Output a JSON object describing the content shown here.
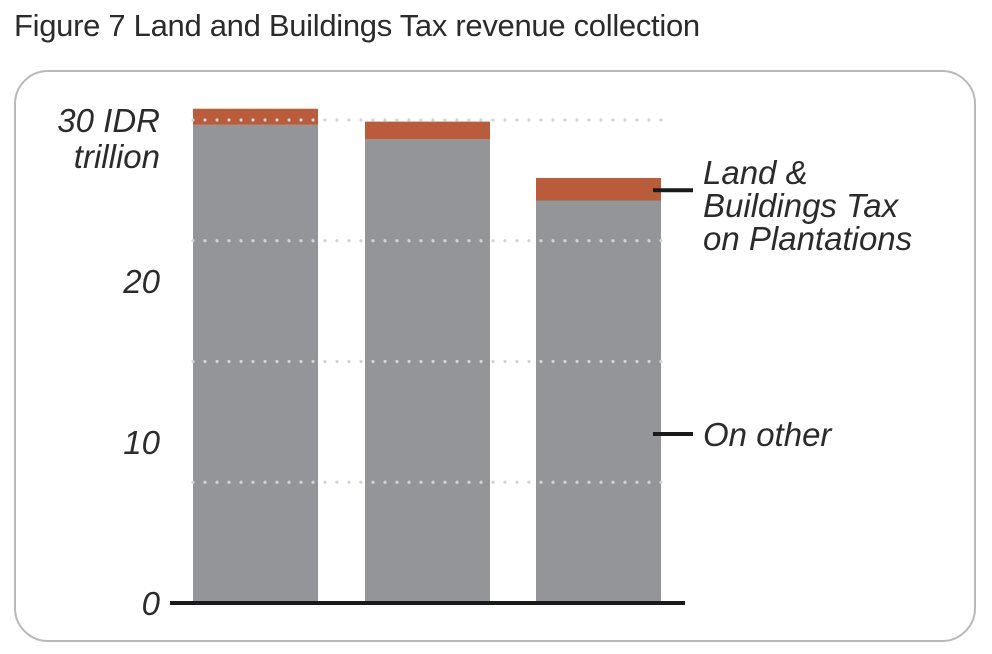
{
  "figure_title": "Figure 7 Land and Buildings Tax revenue collection",
  "chart_data": {
    "type": "bar",
    "stacked": true,
    "categories": [
      "",
      "",
      ""
    ],
    "series": [
      {
        "name": "On other",
        "values": [
          29.7,
          28.8,
          25.0
        ],
        "color": "#939598"
      },
      {
        "name": "Land & Buildings Tax on Plantations",
        "values": [
          1.0,
          1.1,
          1.4
        ],
        "color": "#b85c3c"
      }
    ],
    "ylim": [
      0,
      30
    ],
    "yticks": [
      {
        "value": 30,
        "lines": [
          "30 IDR",
          "trillion"
        ]
      },
      {
        "value": 20,
        "lines": [
          "20"
        ]
      },
      {
        "value": 10,
        "lines": [
          "10"
        ]
      },
      {
        "value": 0,
        "lines": [
          "0"
        ]
      }
    ],
    "gridlines": [
      30,
      22.5,
      15,
      7.5
    ],
    "grid": "dotted",
    "legend_placement": "right, labels beside last bar",
    "legend_labels": [
      {
        "series": "Land & Buildings Tax on Plantations",
        "lines": [
          "Land &",
          "Buildings Tax",
          "on Plantations"
        ]
      },
      {
        "series": "On other",
        "lines": [
          "On other"
        ]
      }
    ]
  }
}
